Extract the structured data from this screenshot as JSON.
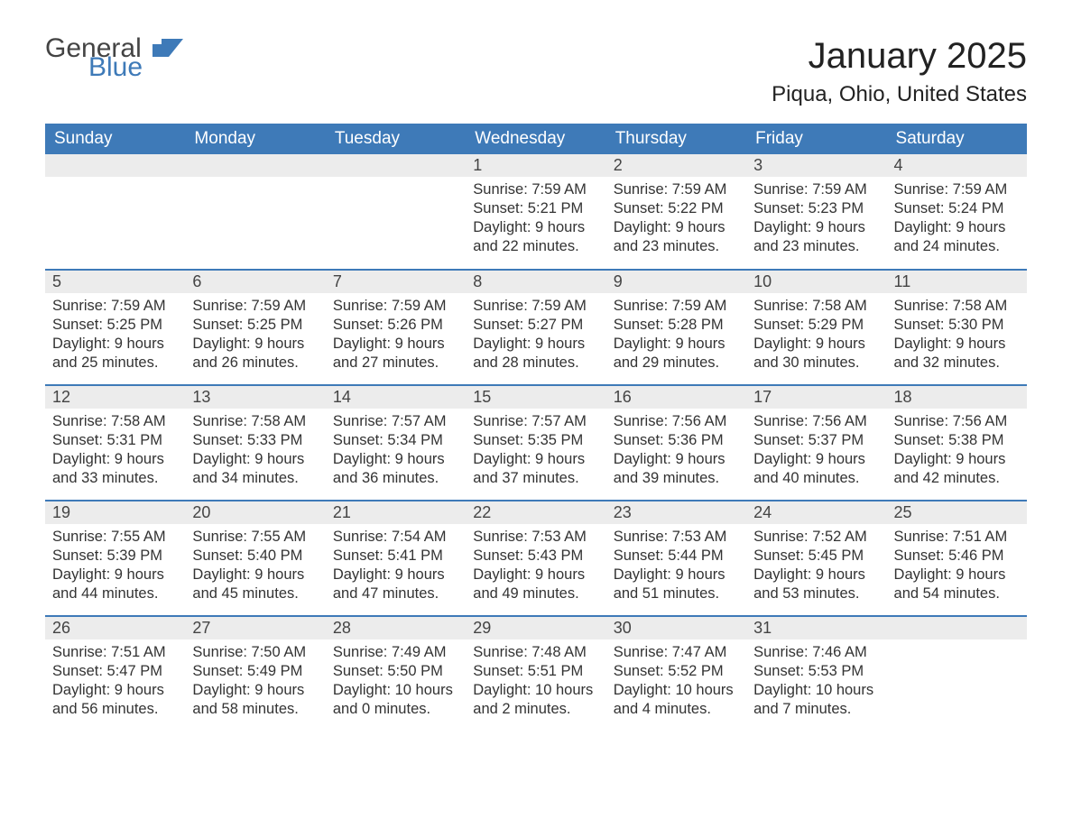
{
  "brand": {
    "part1": "General",
    "part2": "Blue",
    "accent_color": "#3e7ab8"
  },
  "header": {
    "month_title": "January 2025",
    "location": "Piqua, Ohio, United States"
  },
  "colors": {
    "header_bg": "#3e7ab8",
    "header_text": "#ffffff",
    "row_divider": "#3e7ab8",
    "daynum_bg": "#ececec",
    "page_bg": "#ffffff",
    "body_text": "#333333"
  },
  "calendar": {
    "type": "table",
    "columns": [
      "Sunday",
      "Monday",
      "Tuesday",
      "Wednesday",
      "Thursday",
      "Friday",
      "Saturday"
    ],
    "weeks": [
      [
        {
          "day": null
        },
        {
          "day": null
        },
        {
          "day": null
        },
        {
          "day": 1,
          "sunrise": "7:59 AM",
          "sunset": "5:21 PM",
          "daylight": "9 hours and 22 minutes."
        },
        {
          "day": 2,
          "sunrise": "7:59 AM",
          "sunset": "5:22 PM",
          "daylight": "9 hours and 23 minutes."
        },
        {
          "day": 3,
          "sunrise": "7:59 AM",
          "sunset": "5:23 PM",
          "daylight": "9 hours and 23 minutes."
        },
        {
          "day": 4,
          "sunrise": "7:59 AM",
          "sunset": "5:24 PM",
          "daylight": "9 hours and 24 minutes."
        }
      ],
      [
        {
          "day": 5,
          "sunrise": "7:59 AM",
          "sunset": "5:25 PM",
          "daylight": "9 hours and 25 minutes."
        },
        {
          "day": 6,
          "sunrise": "7:59 AM",
          "sunset": "5:25 PM",
          "daylight": "9 hours and 26 minutes."
        },
        {
          "day": 7,
          "sunrise": "7:59 AM",
          "sunset": "5:26 PM",
          "daylight": "9 hours and 27 minutes."
        },
        {
          "day": 8,
          "sunrise": "7:59 AM",
          "sunset": "5:27 PM",
          "daylight": "9 hours and 28 minutes."
        },
        {
          "day": 9,
          "sunrise": "7:59 AM",
          "sunset": "5:28 PM",
          "daylight": "9 hours and 29 minutes."
        },
        {
          "day": 10,
          "sunrise": "7:58 AM",
          "sunset": "5:29 PM",
          "daylight": "9 hours and 30 minutes."
        },
        {
          "day": 11,
          "sunrise": "7:58 AM",
          "sunset": "5:30 PM",
          "daylight": "9 hours and 32 minutes."
        }
      ],
      [
        {
          "day": 12,
          "sunrise": "7:58 AM",
          "sunset": "5:31 PM",
          "daylight": "9 hours and 33 minutes."
        },
        {
          "day": 13,
          "sunrise": "7:58 AM",
          "sunset": "5:33 PM",
          "daylight": "9 hours and 34 minutes."
        },
        {
          "day": 14,
          "sunrise": "7:57 AM",
          "sunset": "5:34 PM",
          "daylight": "9 hours and 36 minutes."
        },
        {
          "day": 15,
          "sunrise": "7:57 AM",
          "sunset": "5:35 PM",
          "daylight": "9 hours and 37 minutes."
        },
        {
          "day": 16,
          "sunrise": "7:56 AM",
          "sunset": "5:36 PM",
          "daylight": "9 hours and 39 minutes."
        },
        {
          "day": 17,
          "sunrise": "7:56 AM",
          "sunset": "5:37 PM",
          "daylight": "9 hours and 40 minutes."
        },
        {
          "day": 18,
          "sunrise": "7:56 AM",
          "sunset": "5:38 PM",
          "daylight": "9 hours and 42 minutes."
        }
      ],
      [
        {
          "day": 19,
          "sunrise": "7:55 AM",
          "sunset": "5:39 PM",
          "daylight": "9 hours and 44 minutes."
        },
        {
          "day": 20,
          "sunrise": "7:55 AM",
          "sunset": "5:40 PM",
          "daylight": "9 hours and 45 minutes."
        },
        {
          "day": 21,
          "sunrise": "7:54 AM",
          "sunset": "5:41 PM",
          "daylight": "9 hours and 47 minutes."
        },
        {
          "day": 22,
          "sunrise": "7:53 AM",
          "sunset": "5:43 PM",
          "daylight": "9 hours and 49 minutes."
        },
        {
          "day": 23,
          "sunrise": "7:53 AM",
          "sunset": "5:44 PM",
          "daylight": "9 hours and 51 minutes."
        },
        {
          "day": 24,
          "sunrise": "7:52 AM",
          "sunset": "5:45 PM",
          "daylight": "9 hours and 53 minutes."
        },
        {
          "day": 25,
          "sunrise": "7:51 AM",
          "sunset": "5:46 PM",
          "daylight": "9 hours and 54 minutes."
        }
      ],
      [
        {
          "day": 26,
          "sunrise": "7:51 AM",
          "sunset": "5:47 PM",
          "daylight": "9 hours and 56 minutes."
        },
        {
          "day": 27,
          "sunrise": "7:50 AM",
          "sunset": "5:49 PM",
          "daylight": "9 hours and 58 minutes."
        },
        {
          "day": 28,
          "sunrise": "7:49 AM",
          "sunset": "5:50 PM",
          "daylight": "10 hours and 0 minutes."
        },
        {
          "day": 29,
          "sunrise": "7:48 AM",
          "sunset": "5:51 PM",
          "daylight": "10 hours and 2 minutes."
        },
        {
          "day": 30,
          "sunrise": "7:47 AM",
          "sunset": "5:52 PM",
          "daylight": "10 hours and 4 minutes."
        },
        {
          "day": 31,
          "sunrise": "7:46 AM",
          "sunset": "5:53 PM",
          "daylight": "10 hours and 7 minutes."
        },
        {
          "day": null
        }
      ]
    ],
    "labels": {
      "sunrise": "Sunrise: ",
      "sunset": "Sunset: ",
      "daylight": "Daylight: "
    }
  }
}
